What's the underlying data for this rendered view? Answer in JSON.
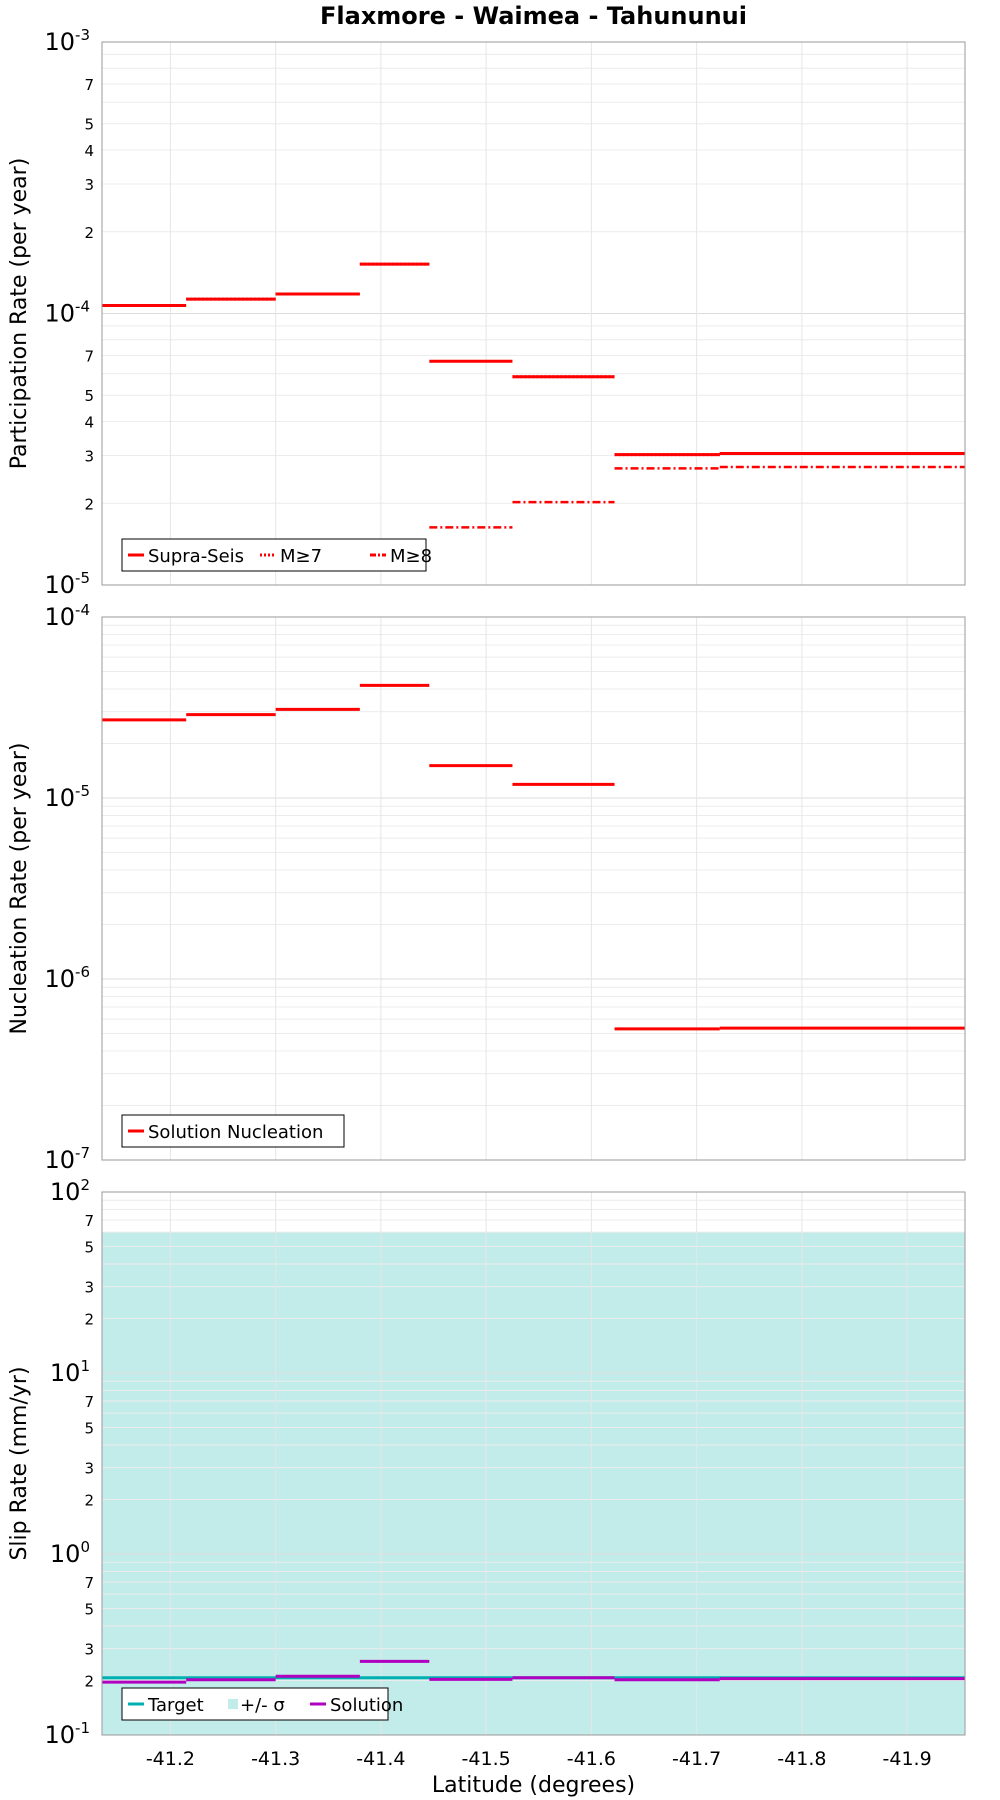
{
  "chart_data": {
    "type": "line",
    "title": "Flaxmore - Waimea - Tahununui",
    "xlabel": "Latitude (degrees)",
    "xlim": [
      -41.135,
      -41.955
    ],
    "xticks": [
      -41.2,
      -41.3,
      -41.4,
      -41.5,
      -41.6,
      -41.7,
      -41.8,
      -41.9
    ],
    "xtick_labels": [
      "-41.2",
      "-41.3",
      "-41.4",
      "-41.5",
      "-41.6",
      "-41.7",
      "-41.8",
      "-41.9"
    ],
    "panels": [
      {
        "ylabel": "Participation Rate (per year)",
        "scale": "log",
        "ylim_exp": [
          -5,
          -3
        ],
        "major_labels": [
          {
            "base": "10",
            "exp": "-5"
          },
          {
            "base": "10",
            "exp": "-4"
          },
          {
            "base": "10",
            "exp": "-3"
          }
        ],
        "minor_labels": [
          "2",
          "3",
          "4",
          "5",
          "7"
        ],
        "legend": [
          "Supra-Seis",
          "M≥7",
          "M≥8"
        ],
        "series": [
          {
            "name": "Supra-Seis",
            "color": "#ff0000",
            "style": "solid",
            "segments": [
              {
                "x0": -41.135,
                "x1": -41.215,
                "y": 0.000107
              },
              {
                "x0": -41.215,
                "x1": -41.3,
                "y": 0.000113
              },
              {
                "x0": -41.3,
                "x1": -41.38,
                "y": 0.000118
              },
              {
                "x0": -41.38,
                "x1": -41.446,
                "y": 0.000152
              },
              {
                "x0": -41.446,
                "x1": -41.525,
                "y": 6.67e-05
              },
              {
                "x0": -41.525,
                "x1": -41.622,
                "y": 5.85e-05
              },
              {
                "x0": -41.622,
                "x1": -41.722,
                "y": 3.02e-05
              },
              {
                "x0": -41.722,
                "x1": -41.955,
                "y": 3.05e-05
              }
            ]
          },
          {
            "name": "M≥7",
            "color": "#ff0000",
            "style": "dotted",
            "segments": [
              {
                "x0": -41.215,
                "x1": -41.3,
                "y": 0.000113
              },
              {
                "x0": -41.3,
                "x1": -41.38,
                "y": 0.000118
              },
              {
                "x0": -41.38,
                "x1": -41.446,
                "y": 0.000152
              },
              {
                "x0": -41.525,
                "x1": -41.622,
                "y": 5.85e-05
              },
              {
                "x0": -41.622,
                "x1": -41.722,
                "y": 3.02e-05
              },
              {
                "x0": -41.722,
                "x1": -41.955,
                "y": 3.05e-05
              }
            ]
          },
          {
            "name": "M≥8",
            "color": "#ff0000",
            "style": "dashdot",
            "segments": [
              {
                "x0": -41.446,
                "x1": -41.525,
                "y": 1.63e-05
              },
              {
                "x0": -41.525,
                "x1": -41.622,
                "y": 2.02e-05
              },
              {
                "x0": -41.622,
                "x1": -41.722,
                "y": 2.69e-05
              },
              {
                "x0": -41.722,
                "x1": -41.955,
                "y": 2.72e-05
              }
            ]
          }
        ]
      },
      {
        "ylabel": "Nucleation Rate (per year)",
        "scale": "log",
        "ylim_exp": [
          -7,
          -4
        ],
        "major_labels": [
          {
            "base": "10",
            "exp": "-7"
          },
          {
            "base": "10",
            "exp": "-6"
          },
          {
            "base": "10",
            "exp": "-5"
          },
          {
            "base": "10",
            "exp": "-4"
          }
        ],
        "minor_labels": [],
        "legend": [
          "Solution Nucleation"
        ],
        "series": [
          {
            "name": "Solution Nucleation",
            "color": "#ff0000",
            "style": "solid",
            "segments": [
              {
                "x0": -41.135,
                "x1": -41.215,
                "y": 2.7e-05
              },
              {
                "x0": -41.215,
                "x1": -41.3,
                "y": 2.89e-05
              },
              {
                "x0": -41.3,
                "x1": -41.38,
                "y": 3.09e-05
              },
              {
                "x0": -41.38,
                "x1": -41.446,
                "y": 4.19e-05
              },
              {
                "x0": -41.446,
                "x1": -41.525,
                "y": 1.51e-05
              },
              {
                "x0": -41.525,
                "x1": -41.622,
                "y": 1.19e-05
              },
              {
                "x0": -41.622,
                "x1": -41.722,
                "y": 5.3e-07
              },
              {
                "x0": -41.722,
                "x1": -41.955,
                "y": 5.35e-07
              }
            ]
          }
        ]
      },
      {
        "ylabel": "Slip Rate (mm/yr)",
        "scale": "log",
        "ylim_exp": [
          -1,
          2
        ],
        "major_labels": [
          {
            "base": "10",
            "exp": "-1"
          },
          {
            "base": "10",
            "exp": "0"
          },
          {
            "base": "10",
            "exp": "1"
          },
          {
            "base": "10",
            "exp": "2"
          }
        ],
        "minor_labels": [
          "2",
          "3",
          "5",
          "7"
        ],
        "legend": [
          "Target",
          "+/- σ",
          "Solution"
        ],
        "band": {
          "name": "+/- σ",
          "color": "#c2ecea",
          "low": 0.1,
          "high": 60
        },
        "series": [
          {
            "name": "Target",
            "color": "#00b0b0",
            "style": "solid",
            "segments": [
              {
                "x0": -41.135,
                "x1": -41.955,
                "y": 0.207
              }
            ]
          },
          {
            "name": "Solution",
            "color": "#b000c0",
            "style": "solid",
            "segments": [
              {
                "x0": -41.135,
                "x1": -41.215,
                "y": 0.196
              },
              {
                "x0": -41.215,
                "x1": -41.3,
                "y": 0.202
              },
              {
                "x0": -41.3,
                "x1": -41.38,
                "y": 0.211
              },
              {
                "x0": -41.38,
                "x1": -41.446,
                "y": 0.255
              },
              {
                "x0": -41.446,
                "x1": -41.525,
                "y": 0.203
              },
              {
                "x0": -41.525,
                "x1": -41.622,
                "y": 0.207
              },
              {
                "x0": -41.622,
                "x1": -41.722,
                "y": 0.202
              },
              {
                "x0": -41.722,
                "x1": -41.955,
                "y": 0.205
              }
            ]
          }
        ]
      }
    ]
  }
}
